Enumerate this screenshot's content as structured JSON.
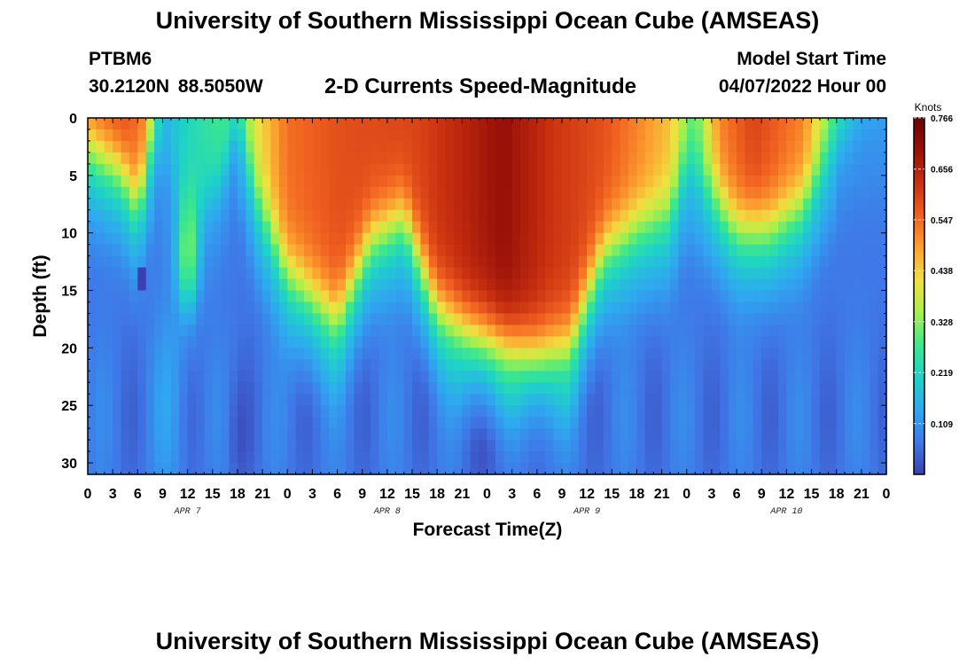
{
  "header": {
    "title": "University of Southern Mississippi Ocean Cube (AMSEAS)",
    "station": "PTBM6",
    "coordinates": "30.2120N  88.5050W",
    "subtitle": "2-D Currents Speed-Magnitude",
    "model_start_label": "Model Start Time",
    "model_start_value": "04/07/2022 Hour 00"
  },
  "footer": {
    "title": "University of Southern Mississippi Ocean Cube (AMSEAS)"
  },
  "chart_data": {
    "type": "heatmap",
    "title": "2-D Currents Speed-Magnitude",
    "xlabel": "Forecast Time(Z)",
    "ylabel": "Depth (ft)",
    "x_hours_range": [
      0,
      96
    ],
    "ylim": [
      0,
      31
    ],
    "y_inverted": true,
    "x_tick_labels": [
      "0",
      "3",
      "6",
      "9",
      "12",
      "15",
      "18",
      "21",
      "0",
      "3",
      "6",
      "9",
      "12",
      "15",
      "18",
      "21",
      "0",
      "3",
      "6",
      "9",
      "12",
      "15",
      "18",
      "21",
      "0",
      "3",
      "6",
      "9",
      "12",
      "15",
      "18",
      "21",
      "0"
    ],
    "y_ticks": [
      0,
      5,
      10,
      15,
      20,
      25,
      30
    ],
    "date_labels": [
      {
        "label": "APR 7",
        "hour": 12
      },
      {
        "label": "APR 8",
        "hour": 36
      },
      {
        "label": "APR 9",
        "hour": 60
      },
      {
        "label": "APR 10",
        "hour": 84
      }
    ],
    "colorbar": {
      "unit": "Knots",
      "min": 0,
      "max": 0.766,
      "tick_labels": [
        "0.766",
        "0.656",
        "0.547",
        "0.438",
        "0.328",
        "0.219",
        "0.109"
      ],
      "tick_values": [
        0.766,
        0.656,
        0.547,
        0.438,
        0.328,
        0.219,
        0.109
      ],
      "colors": [
        "#3b3fb0",
        "#3f78e8",
        "#2fa8f0",
        "#1ed2c8",
        "#3ee88a",
        "#a8f04a",
        "#f0e040",
        "#fca030",
        "#f06020",
        "#c83010",
        "#981008",
        "#6a0404"
      ]
    },
    "grid": false,
    "legend": "colorbar-right"
  }
}
